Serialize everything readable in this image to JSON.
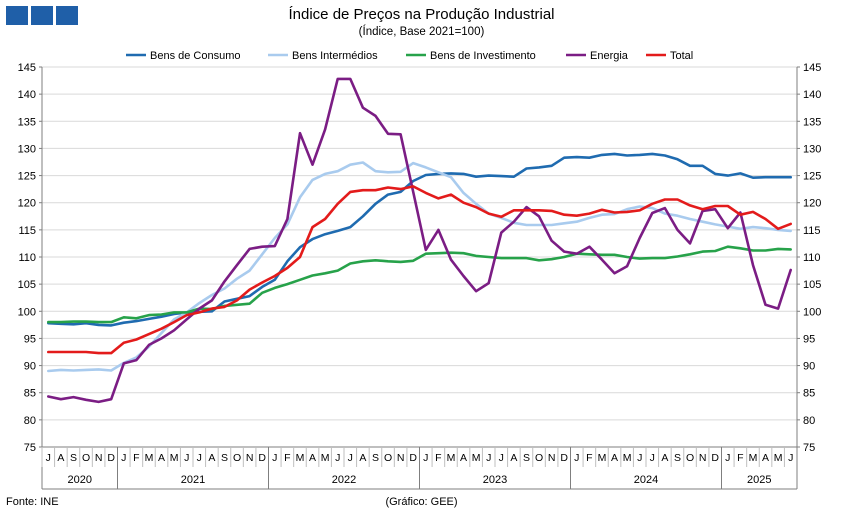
{
  "chart_data": {
    "type": "line",
    "title": "Índice de Preços na Produção Industrial",
    "subtitle": "(Índice, Base 2021=100)",
    "source": "Fonte: INE",
    "credit": "(Gráfico: GEE)",
    "ylim": [
      75,
      145
    ],
    "yticks": [
      75,
      80,
      85,
      90,
      95,
      100,
      105,
      110,
      115,
      120,
      125,
      130,
      135,
      140,
      145
    ],
    "grid": true,
    "legend_position": "top",
    "month_labels": [
      "J",
      "A",
      "S",
      "O",
      "N",
      "D",
      "J",
      "F",
      "M",
      "A",
      "M",
      "J",
      "J",
      "A",
      "S",
      "O",
      "N",
      "D",
      "J",
      "F",
      "M",
      "A",
      "M",
      "J",
      "J",
      "A",
      "S",
      "O",
      "N",
      "D",
      "J",
      "F",
      "M",
      "A",
      "M",
      "J",
      "J",
      "A",
      "S",
      "O",
      "N",
      "D",
      "J",
      "F",
      "M",
      "A",
      "M",
      "J",
      "J",
      "A",
      "S",
      "O",
      "N",
      "D",
      "J",
      "F",
      "M",
      "A",
      "M",
      "J"
    ],
    "year_labels": [
      {
        "label": "2020",
        "start": 0,
        "end": 5
      },
      {
        "label": "2021",
        "start": 6,
        "end": 17
      },
      {
        "label": "2022",
        "start": 18,
        "end": 29
      },
      {
        "label": "2023",
        "start": 30,
        "end": 41
      },
      {
        "label": "2024",
        "start": 42,
        "end": 53
      },
      {
        "label": "2025",
        "start": 54,
        "end": 59
      }
    ],
    "series": [
      {
        "name": "Bens de Consumo",
        "color": "#1f6bb0",
        "values": [
          97.8,
          97.7,
          97.6,
          97.8,
          97.5,
          97.4,
          97.9,
          98.2,
          98.6,
          99.0,
          99.5,
          99.8,
          99.9,
          100.0,
          101.8,
          102.3,
          102.8,
          104.5,
          105.8,
          109.2,
          111.8,
          113.3,
          114.2,
          114.8,
          115.5,
          117.5,
          119.8,
          121.5,
          122.0,
          124.0,
          125.1,
          125.3,
          125.4,
          125.3,
          124.8,
          125.0,
          124.9,
          124.8,
          126.3,
          126.5,
          126.8,
          128.3,
          128.4,
          128.3,
          128.8,
          129.0,
          128.7,
          128.8,
          129.0,
          128.7,
          128.0,
          126.8,
          126.8,
          125.3,
          125.0,
          125.4,
          124.6,
          124.7,
          124.7,
          124.7
        ]
      },
      {
        "name": "Bens Intermédios",
        "color": "#a9cbee",
        "values": [
          89.0,
          89.2,
          89.1,
          89.2,
          89.3,
          89.1,
          90.5,
          91.5,
          93.5,
          96.0,
          98.5,
          99.8,
          101.5,
          103.0,
          104.2,
          106.0,
          107.5,
          110.5,
          113.5,
          116.0,
          121.0,
          124.2,
          125.3,
          125.8,
          127.0,
          127.4,
          125.8,
          125.6,
          125.7,
          127.3,
          126.5,
          125.6,
          124.7,
          121.8,
          119.8,
          118.0,
          117.2,
          116.3,
          115.9,
          115.9,
          115.9,
          116.2,
          116.5,
          117.2,
          117.8,
          117.9,
          118.8,
          119.3,
          119.0,
          118.0,
          117.6,
          117.0,
          116.5,
          116.0,
          115.6,
          115.2,
          115.5,
          115.3,
          115.0,
          114.8
        ]
      },
      {
        "name": "Bens de Investimento",
        "color": "#27a24a",
        "values": [
          98.0,
          98.0,
          98.1,
          98.1,
          98.0,
          98.0,
          98.9,
          98.7,
          99.3,
          99.4,
          99.8,
          99.8,
          100.5,
          100.4,
          101.0,
          101.2,
          101.4,
          103.4,
          104.3,
          105.0,
          105.8,
          106.6,
          107.0,
          107.5,
          108.8,
          109.2,
          109.4,
          109.2,
          109.1,
          109.3,
          110.6,
          110.7,
          110.8,
          110.7,
          110.2,
          110.0,
          109.8,
          109.8,
          109.8,
          109.4,
          109.6,
          110.0,
          110.6,
          110.5,
          110.4,
          110.4,
          110.0,
          109.7,
          109.8,
          109.8,
          110.1,
          110.5,
          111.0,
          111.1,
          111.9,
          111.6,
          111.2,
          111.2,
          111.5,
          111.4
        ]
      },
      {
        "name": "Energia",
        "color": "#7b1d84",
        "values": [
          84.3,
          83.8,
          84.2,
          83.7,
          83.3,
          83.8,
          90.4,
          91.0,
          93.8,
          95.0,
          96.5,
          98.5,
          100.5,
          102.0,
          105.5,
          108.5,
          111.5,
          111.9,
          112.0,
          117.0,
          132.8,
          127.0,
          133.5,
          142.8,
          142.8,
          137.5,
          136.0,
          132.7,
          132.6,
          122.0,
          111.3,
          115.0,
          109.5,
          106.5,
          103.7,
          105.2,
          114.5,
          116.5,
          119.2,
          117.5,
          113.0,
          111.0,
          110.6,
          111.9,
          109.5,
          107.0,
          108.3,
          113.5,
          118.1,
          119.0,
          115.0,
          112.5,
          118.5,
          118.8,
          115.3,
          118.2,
          108.5,
          101.2,
          100.5,
          107.6
        ]
      },
      {
        "name": "Total",
        "color": "#e31b1b",
        "values": [
          92.5,
          92.5,
          92.5,
          92.5,
          92.3,
          92.3,
          94.2,
          94.8,
          95.8,
          96.8,
          98.0,
          99.3,
          99.8,
          100.5,
          100.8,
          102.0,
          104.0,
          105.3,
          106.5,
          108.0,
          110.0,
          115.5,
          117.0,
          119.8,
          122.0,
          122.3,
          122.3,
          122.8,
          122.5,
          123.0,
          121.8,
          120.8,
          121.5,
          120.0,
          119.2,
          118.0,
          117.4,
          118.6,
          118.6,
          118.6,
          118.5,
          117.8,
          117.6,
          118.0,
          118.7,
          118.2,
          118.3,
          118.6,
          119.8,
          120.6,
          120.6,
          119.5,
          118.8,
          119.4,
          119.4,
          117.8,
          118.3,
          117.0,
          115.2,
          116.1
        ]
      }
    ]
  }
}
